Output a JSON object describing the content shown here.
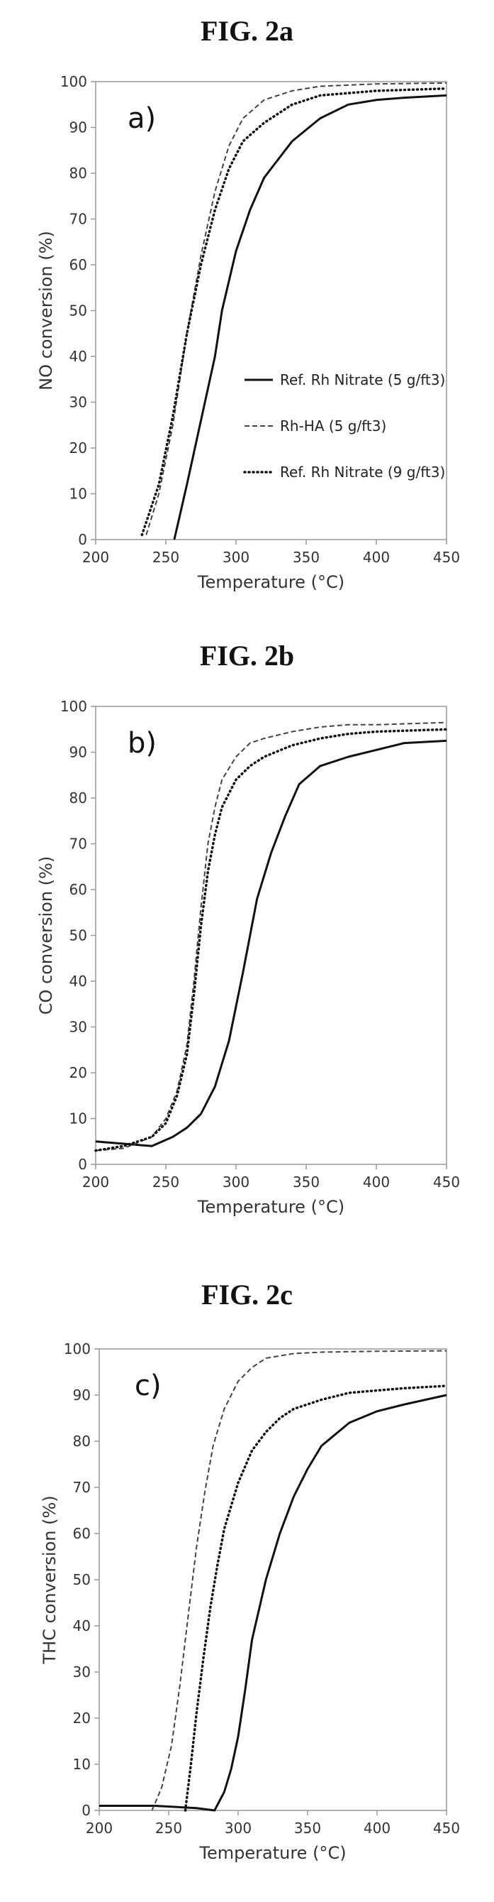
{
  "figures": [
    {
      "title": "FIG. 2a"
    },
    {
      "title": "FIG. 2b"
    },
    {
      "title": "FIG. 2c"
    }
  ],
  "chart_data": [
    {
      "type": "line",
      "panel_label": "a)",
      "xlabel": "Temperature (°C)",
      "ylabel": "NO conversion (%)",
      "xlim": [
        200,
        450
      ],
      "ylim": [
        0,
        100
      ],
      "xticks": [
        200,
        250,
        300,
        350,
        400,
        450
      ],
      "yticks": [
        0,
        10,
        20,
        30,
        40,
        50,
        60,
        70,
        80,
        90,
        100
      ],
      "grid": false,
      "legend": "right-middle",
      "series": [
        {
          "name": "Ref. Rh Nitrate (5 g/ft3)",
          "style": "solid",
          "x": [
            256,
            265,
            275,
            285,
            290,
            300,
            310,
            320,
            340,
            360,
            380,
            400,
            420,
            450
          ],
          "y": [
            0,
            12,
            26,
            40,
            50,
            63,
            72,
            79,
            87,
            92,
            95,
            96,
            96.5,
            97
          ]
        },
        {
          "name": "Rh-HA (5 g/ft3)",
          "style": "dashed",
          "x": [
            236,
            245,
            255,
            265,
            275,
            285,
            295,
            305,
            320,
            340,
            360,
            400,
            450
          ],
          "y": [
            1,
            10,
            25,
            45,
            62,
            76,
            86,
            92,
            96,
            98,
            99,
            99.5,
            99.7
          ]
        },
        {
          "name": "Ref. Rh Nitrate (9 g/ft3)",
          "style": "dotted",
          "x": [
            233,
            245,
            255,
            265,
            275,
            285,
            295,
            305,
            320,
            340,
            360,
            400,
            450
          ],
          "y": [
            1,
            12,
            27,
            45,
            60,
            72,
            81,
            87,
            91,
            95,
            97,
            98,
            98.5
          ]
        }
      ]
    },
    {
      "type": "line",
      "panel_label": "b)",
      "xlabel": "Temperature (°C)",
      "ylabel": "CO conversion (%)",
      "xlim": [
        200,
        450
      ],
      "ylim": [
        0,
        100
      ],
      "xticks": [
        200,
        250,
        300,
        350,
        400,
        450
      ],
      "yticks": [
        0,
        10,
        20,
        30,
        40,
        50,
        60,
        70,
        80,
        90,
        100
      ],
      "grid": false,
      "legend": "none",
      "series": [
        {
          "name": "Ref. Rh Nitrate (5 g/ft3)",
          "style": "solid",
          "x": [
            200,
            220,
            240,
            255,
            265,
            275,
            285,
            295,
            305,
            315,
            325,
            335,
            345,
            360,
            380,
            400,
            420,
            450
          ],
          "y": [
            5,
            4.5,
            4,
            6,
            8,
            11,
            17,
            27,
            42,
            58,
            68,
            76,
            83,
            87,
            89,
            90.5,
            92,
            92.5
          ]
        },
        {
          "name": "Rh-HA (5 g/ft3)",
          "style": "dashed",
          "x": [
            200,
            220,
            240,
            250,
            258,
            265,
            270,
            275,
            280,
            285,
            290,
            300,
            310,
            320,
            340,
            360,
            380,
            400,
            450
          ],
          "y": [
            3,
            3.5,
            6,
            10,
            16,
            26,
            40,
            56,
            70,
            78,
            84,
            89,
            92,
            93,
            94.5,
            95.5,
            96,
            96,
            96.5
          ]
        },
        {
          "name": "Ref. Rh Nitrate (9 g/ft3)",
          "style": "dotted",
          "x": [
            200,
            220,
            240,
            250,
            258,
            265,
            270,
            275,
            280,
            285,
            290,
            300,
            310,
            320,
            340,
            360,
            380,
            400,
            450
          ],
          "y": [
            3,
            4,
            6,
            9,
            15,
            24,
            37,
            52,
            64,
            72,
            78,
            84,
            87,
            89,
            91.5,
            93,
            94,
            94.5,
            95
          ]
        }
      ]
    },
    {
      "type": "line",
      "panel_label": "c)",
      "xlabel": "Temperature (°C)",
      "ylabel": "THC conversion (%)",
      "xlim": [
        200,
        450
      ],
      "ylim": [
        0,
        100
      ],
      "xticks": [
        200,
        250,
        300,
        350,
        400,
        450
      ],
      "yticks": [
        0,
        10,
        20,
        30,
        40,
        50,
        60,
        70,
        80,
        90,
        100
      ],
      "grid": false,
      "legend": "none",
      "series": [
        {
          "name": "Ref. Rh Nitrate (5 g/ft3)",
          "style": "solid",
          "x": [
            200,
            240,
            270,
            283,
            290,
            295,
            300,
            305,
            310,
            320,
            330,
            340,
            350,
            360,
            380,
            400,
            420,
            450
          ],
          "y": [
            1,
            1,
            0.5,
            0,
            4,
            9,
            16,
            26,
            37,
            50,
            60,
            68,
            74,
            79,
            84,
            86.5,
            88,
            90
          ]
        },
        {
          "name": "Rh-HA (5 g/ft3)",
          "style": "dashed",
          "x": [
            238,
            245,
            252,
            258,
            264,
            270,
            276,
            282,
            290,
            300,
            310,
            320,
            340,
            360,
            400,
            450
          ],
          "y": [
            0,
            5,
            14,
            27,
            42,
            57,
            69,
            79,
            87,
            93,
            96,
            98,
            99,
            99.3,
            99.5,
            99.6
          ]
        },
        {
          "name": "Ref. Rh Nitrate (9 g/ft3)",
          "style": "dotted",
          "x": [
            262,
            266,
            270,
            275,
            280,
            285,
            290,
            300,
            310,
            320,
            330,
            340,
            360,
            380,
            400,
            420,
            450
          ],
          "y": [
            0,
            10,
            21,
            33,
            44,
            53,
            61,
            71,
            78,
            82,
            85,
            87,
            89,
            90.5,
            91,
            91.5,
            92
          ]
        }
      ]
    }
  ]
}
